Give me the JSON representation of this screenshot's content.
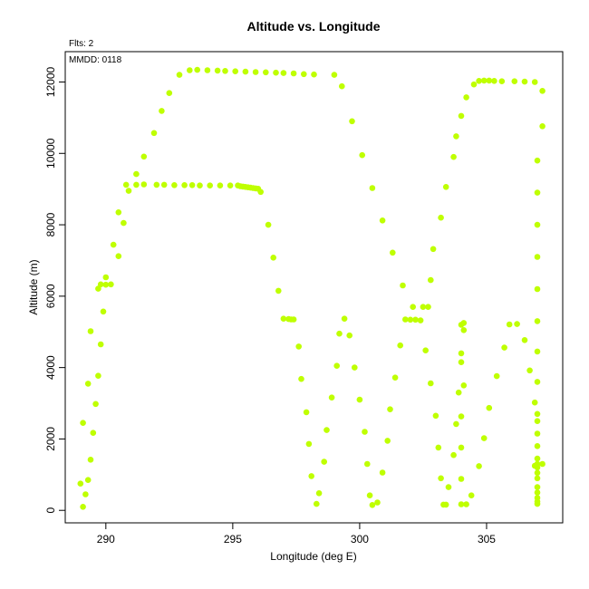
{
  "chart_data": {
    "type": "scatter",
    "title": "Altitude vs. Longitude",
    "xlabel": "Longitude (deg E)",
    "ylabel": "Altitude (m)",
    "xlim": [
      288.4,
      308.0
    ],
    "ylim": [
      -350,
      12850
    ],
    "xticks": [
      290,
      295,
      300,
      305
    ],
    "yticks": [
      0,
      2000,
      4000,
      6000,
      8000,
      10000,
      12000
    ],
    "grid": false,
    "legend": "none",
    "annotations": [
      "Flts: 2",
      "MMDD: 0118"
    ],
    "point_color": "#bfff00",
    "points": [
      [
        289.0,
        750
      ],
      [
        289.1,
        100
      ],
      [
        289.2,
        450
      ],
      [
        289.1,
        2450
      ],
      [
        289.3,
        850
      ],
      [
        289.3,
        3550
      ],
      [
        289.4,
        5020
      ],
      [
        289.4,
        1420
      ],
      [
        289.5,
        2170
      ],
      [
        289.6,
        2980
      ],
      [
        289.7,
        6210
      ],
      [
        289.7,
        3770
      ],
      [
        289.8,
        6330
      ],
      [
        289.8,
        4650
      ],
      [
        289.9,
        5570
      ],
      [
        290.0,
        6530
      ],
      [
        290.0,
        6320
      ],
      [
        290.2,
        6330
      ],
      [
        290.3,
        7440
      ],
      [
        290.5,
        8350
      ],
      [
        290.5,
        7120
      ],
      [
        290.7,
        8050
      ],
      [
        290.8,
        9120
      ],
      [
        290.9,
        8950
      ],
      [
        291.2,
        9120
      ],
      [
        291.2,
        9420
      ],
      [
        291.5,
        9910
      ],
      [
        291.5,
        9130
      ],
      [
        291.9,
        10570
      ],
      [
        292.0,
        9120
      ],
      [
        292.2,
        11190
      ],
      [
        292.3,
        9120
      ],
      [
        292.5,
        11690
      ],
      [
        292.7,
        9110
      ],
      [
        292.9,
        12200
      ],
      [
        293.1,
        9110
      ],
      [
        293.3,
        12330
      ],
      [
        293.4,
        9110
      ],
      [
        293.6,
        12340
      ],
      [
        293.7,
        9100
      ],
      [
        294.0,
        12330
      ],
      [
        294.1,
        9100
      ],
      [
        294.4,
        12320
      ],
      [
        294.5,
        9100
      ],
      [
        294.7,
        12310
      ],
      [
        294.9,
        9100
      ],
      [
        295.1,
        12300
      ],
      [
        295.2,
        9100
      ],
      [
        295.5,
        12290
      ],
      [
        295.3,
        9080
      ],
      [
        295.4,
        9070
      ],
      [
        295.5,
        9060
      ],
      [
        295.6,
        9050
      ],
      [
        295.7,
        9040
      ],
      [
        295.8,
        9030
      ],
      [
        295.9,
        9020
      ],
      [
        296.0,
        9010
      ],
      [
        295.9,
        12280
      ],
      [
        296.1,
        8920
      ],
      [
        296.3,
        12270
      ],
      [
        296.4,
        8000
      ],
      [
        296.6,
        7080
      ],
      [
        296.7,
        12260
      ],
      [
        296.8,
        6150
      ],
      [
        297.0,
        5370
      ],
      [
        297.0,
        12250
      ],
      [
        297.2,
        5360
      ],
      [
        297.3,
        5350
      ],
      [
        297.4,
        5350
      ],
      [
        297.4,
        12240
      ],
      [
        297.6,
        4590
      ],
      [
        297.7,
        3680
      ],
      [
        297.8,
        12220
      ],
      [
        297.9,
        2750
      ],
      [
        298.0,
        1860
      ],
      [
        298.1,
        960
      ],
      [
        298.2,
        12210
      ],
      [
        298.3,
        180
      ],
      [
        298.4,
        480
      ],
      [
        298.6,
        1360
      ],
      [
        298.7,
        2250
      ],
      [
        298.9,
        3160
      ],
      [
        299.0,
        12200
      ],
      [
        299.1,
        4050
      ],
      [
        299.2,
        4950
      ],
      [
        299.3,
        11880
      ],
      [
        299.4,
        5370
      ],
      [
        299.6,
        4900
      ],
      [
        299.7,
        10900
      ],
      [
        299.8,
        4000
      ],
      [
        300.0,
        3100
      ],
      [
        300.1,
        9950
      ],
      [
        300.2,
        2200
      ],
      [
        300.3,
        1300
      ],
      [
        300.4,
        420
      ],
      [
        300.5,
        9030
      ],
      [
        300.5,
        150
      ],
      [
        300.7,
        220
      ],
      [
        300.9,
        1060
      ],
      [
        300.9,
        8120
      ],
      [
        301.1,
        1950
      ],
      [
        301.2,
        2830
      ],
      [
        301.3,
        7220
      ],
      [
        301.4,
        3720
      ],
      [
        301.6,
        4620
      ],
      [
        301.7,
        6300
      ],
      [
        301.8,
        5350
      ],
      [
        302.0,
        5340
      ],
      [
        302.2,
        5340
      ],
      [
        302.1,
        5700
      ],
      [
        302.4,
        5320
      ],
      [
        302.5,
        5700
      ],
      [
        302.6,
        4480
      ],
      [
        302.8,
        6450
      ],
      [
        302.7,
        5700
      ],
      [
        302.8,
        3560
      ],
      [
        303.0,
        2650
      ],
      [
        302.9,
        7320
      ],
      [
        303.1,
        1760
      ],
      [
        303.2,
        900
      ],
      [
        303.2,
        8200
      ],
      [
        303.3,
        160
      ],
      [
        303.4,
        160
      ],
      [
        303.4,
        9060
      ],
      [
        303.5,
        650
      ],
      [
        303.7,
        9900
      ],
      [
        303.7,
        1550
      ],
      [
        303.8,
        2420
      ],
      [
        303.8,
        10480
      ],
      [
        303.9,
        3300
      ],
      [
        304.0,
        11050
      ],
      [
        304.0,
        4150
      ],
      [
        304.0,
        5200
      ],
      [
        304.1,
        5250
      ],
      [
        304.1,
        5050
      ],
      [
        304.0,
        4400
      ],
      [
        304.1,
        3500
      ],
      [
        304.0,
        2630
      ],
      [
        304.0,
        1760
      ],
      [
        304.0,
        880
      ],
      [
        304.0,
        170
      ],
      [
        304.2,
        170
      ],
      [
        304.2,
        11570
      ],
      [
        304.4,
        420
      ],
      [
        304.5,
        11930
      ],
      [
        304.7,
        1240
      ],
      [
        304.7,
        12030
      ],
      [
        304.9,
        2020
      ],
      [
        304.9,
        12040
      ],
      [
        305.1,
        2870
      ],
      [
        305.1,
        12040
      ],
      [
        305.3,
        12030
      ],
      [
        305.4,
        3760
      ],
      [
        305.6,
        12020
      ],
      [
        305.7,
        4560
      ],
      [
        305.9,
        5210
      ],
      [
        306.1,
        12020
      ],
      [
        306.2,
        5220
      ],
      [
        306.5,
        4770
      ],
      [
        306.5,
        12010
      ],
      [
        306.7,
        3920
      ],
      [
        306.9,
        12000
      ],
      [
        306.9,
        3020
      ],
      [
        307.0,
        2150
      ],
      [
        307.0,
        1300
      ],
      [
        307.0,
        8900
      ],
      [
        307.0,
        9800
      ],
      [
        307.0,
        8000
      ],
      [
        307.0,
        7100
      ],
      [
        307.0,
        6200
      ],
      [
        307.0,
        5300
      ],
      [
        307.0,
        4450
      ],
      [
        307.0,
        3600
      ],
      [
        307.0,
        2700
      ],
      [
        307.0,
        1800
      ],
      [
        307.0,
        1450
      ],
      [
        307.0,
        1200
      ],
      [
        307.0,
        1050
      ],
      [
        307.0,
        900
      ],
      [
        307.0,
        650
      ],
      [
        307.0,
        500
      ],
      [
        307.0,
        350
      ],
      [
        307.0,
        250
      ],
      [
        307.0,
        180
      ],
      [
        306.9,
        1250
      ],
      [
        307.2,
        1300
      ],
      [
        307.2,
        10760
      ],
      [
        307.2,
        11750
      ],
      [
        307.0,
        2500
      ]
    ]
  }
}
